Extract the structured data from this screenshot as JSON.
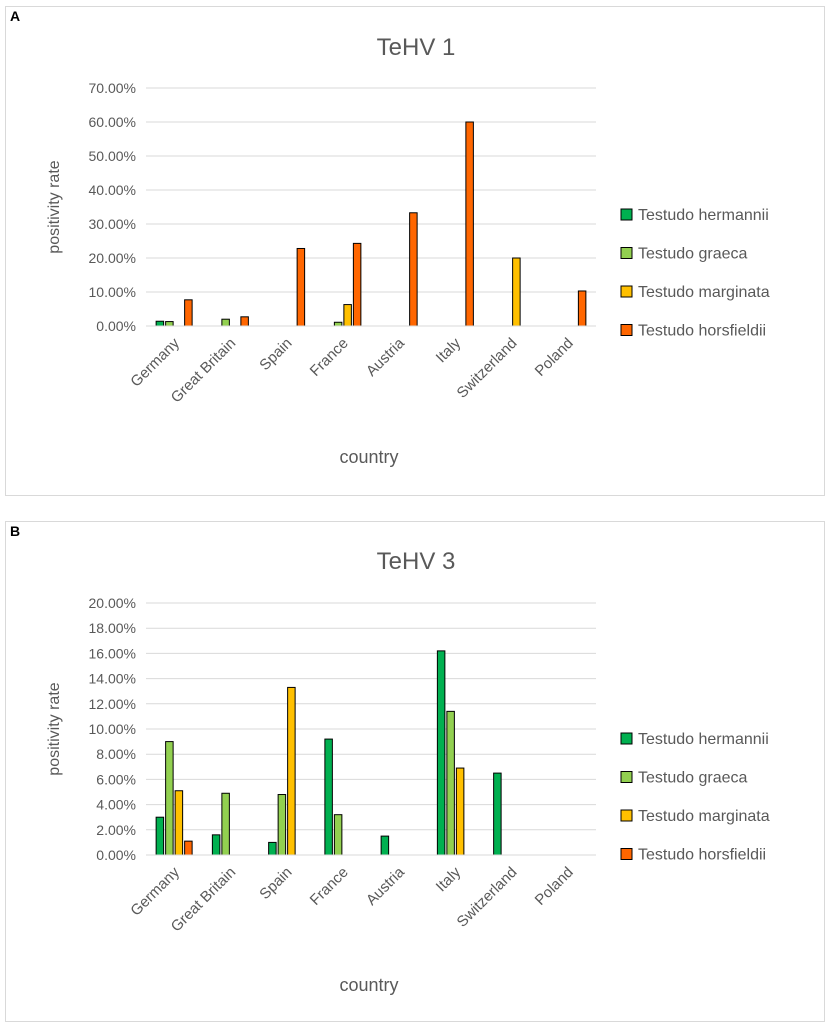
{
  "panels": [
    {
      "letter": "A"
    },
    {
      "letter": "B"
    }
  ],
  "chart_data": [
    {
      "type": "bar",
      "title": "TeHV 1",
      "xlabel": "country",
      "ylabel": "positivity rate",
      "ylim": [
        0,
        0.7
      ],
      "ytick_step": 0.1,
      "ytick_labels": [
        "0.00%",
        "10.00%",
        "20.00%",
        "30.00%",
        "40.00%",
        "50.00%",
        "60.00%",
        "70.00%"
      ],
      "grid": true,
      "legend_position": "right",
      "categories": [
        "Germany",
        "Great Britain",
        "Spain",
        "France",
        "Austria",
        "Italy",
        "Switzerland",
        "Poland"
      ],
      "series": [
        {
          "name": "Testudo hermannii",
          "color": "#00b050",
          "values": [
            0.014,
            0,
            0,
            0,
            0,
            0,
            0,
            0
          ]
        },
        {
          "name": "Testudo graeca",
          "color": "#92d050",
          "values": [
            0.013,
            0.02,
            0,
            0.011,
            0,
            0,
            0,
            0
          ]
        },
        {
          "name": "Testudo marginata",
          "color": "#ffc000",
          "values": [
            0,
            0,
            0,
            0.063,
            0,
            0,
            0.2,
            0
          ]
        },
        {
          "name": "Testudo horsfieldii",
          "color": "#ff6600",
          "values": [
            0.077,
            0.027,
            0.228,
            0.243,
            0.333,
            0.6,
            0,
            0.103
          ]
        }
      ]
    },
    {
      "type": "bar",
      "title": "TeHV 3",
      "xlabel": "country",
      "ylabel": "positivity rate",
      "ylim": [
        0,
        0.2
      ],
      "ytick_step": 0.02,
      "ytick_labels": [
        "0.00%",
        "2.00%",
        "4.00%",
        "6.00%",
        "8.00%",
        "10.00%",
        "12.00%",
        "14.00%",
        "16.00%",
        "18.00%",
        "20.00%"
      ],
      "grid": true,
      "legend_position": "right",
      "categories": [
        "Germany",
        "Great Britain",
        "Spain",
        "France",
        "Austria",
        "Italy",
        "Switzerland",
        "Poland"
      ],
      "series": [
        {
          "name": "Testudo hermannii",
          "color": "#00b050",
          "values": [
            0.03,
            0.016,
            0.01,
            0.092,
            0.015,
            0.162,
            0.065,
            0
          ]
        },
        {
          "name": "Testudo graeca",
          "color": "#92d050",
          "values": [
            0.09,
            0.049,
            0.048,
            0.032,
            0,
            0.114,
            0,
            0
          ]
        },
        {
          "name": "Testudo marginata",
          "color": "#ffc000",
          "values": [
            0.051,
            0,
            0.133,
            0,
            0,
            0.069,
            0,
            0
          ]
        },
        {
          "name": "Testudo horsfieldii",
          "color": "#ff6600",
          "values": [
            0.011,
            0,
            0,
            0,
            0,
            0,
            0,
            0
          ]
        }
      ]
    }
  ]
}
